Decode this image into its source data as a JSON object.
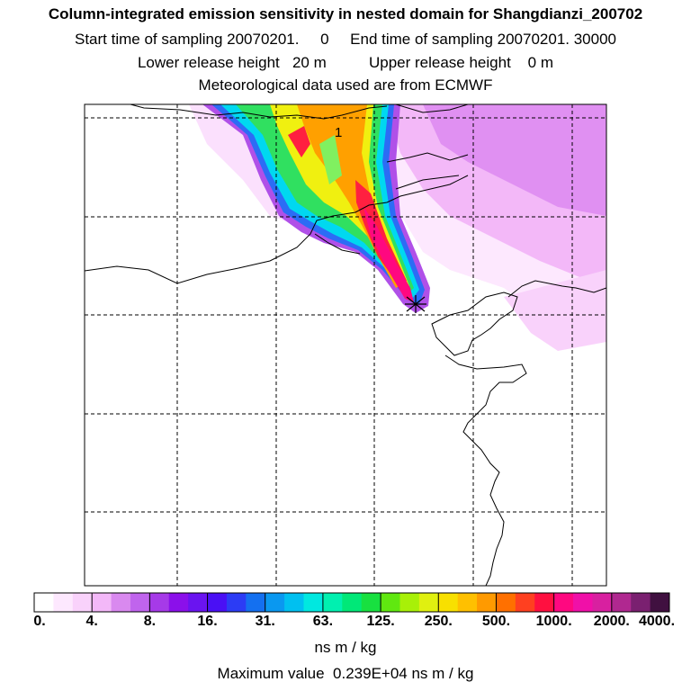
{
  "header": {
    "title": "Column-integrated emission sensitivity in nested domain for Shangdianzi_200702",
    "sampling_line": "Start time of sampling 20070201.     0     End time of sampling 20070201. 30000",
    "release_line": "Lower release height   20 m          Upper release height    0 m",
    "met_line": "Meteorological data used are from ECMWF"
  },
  "map": {
    "contour_label": "1",
    "receptor_marker": "receptor-cross-icon"
  },
  "colorbar": {
    "colors": [
      "#ffffff",
      "#fde8fe",
      "#f9d2fb",
      "#f3b8f8",
      "#d989ef",
      "#c064ed",
      "#a63ae8",
      "#8b10ea",
      "#6a14f0",
      "#4a10f5",
      "#2c3cf5",
      "#1470f0",
      "#0a98f0",
      "#00c0f0",
      "#00e8e0",
      "#00f0b0",
      "#00e878",
      "#18e040",
      "#60e810",
      "#a8f008",
      "#e0f010",
      "#f8e000",
      "#ffc000",
      "#ff9a00",
      "#ff7000",
      "#ff4020",
      "#ff1040",
      "#ff0880",
      "#f010a8",
      "#d820a0",
      "#b02890",
      "#7a2070",
      "#401040"
    ],
    "tick_labels": [
      "0.",
      "4.",
      "8.",
      "16.",
      "31.",
      "63.",
      "125.",
      "250.",
      "500.",
      "1000.",
      "2000.",
      "4000."
    ],
    "units": "ns m / kg"
  },
  "footer": {
    "max_value_text": "Maximum value  0.239E+04 ns m / kg"
  }
}
